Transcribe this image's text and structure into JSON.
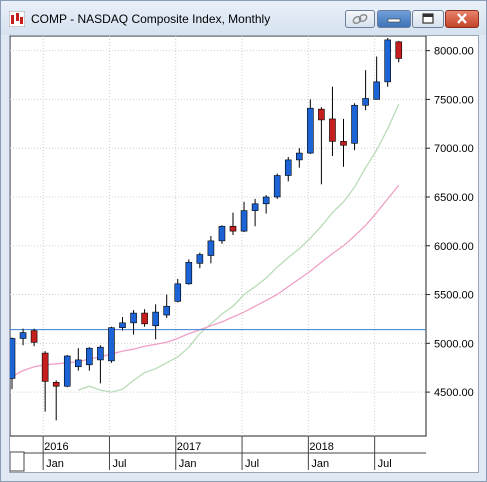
{
  "window": {
    "title": "COMP - NASDAQ Composite Index, Monthly",
    "buttons": [
      "link-icon",
      "minimize-icon",
      "maximize-icon",
      "close-icon"
    ],
    "accent": "#3f73b8"
  },
  "chart_data": {
    "type": "candlestick",
    "title": "COMP - NASDAQ Composite Index, Monthly",
    "y_ticks": [
      "8000.00",
      "7500.00",
      "7000.00",
      "6500.00",
      "6000.00",
      "5500.00",
      "5000.00",
      "4500.00"
    ],
    "ylim": [
      4050,
      8150
    ],
    "x_labels_bottom": [
      "Jan",
      "Jul",
      "Jan",
      "Jul",
      "Jan",
      "Jul"
    ],
    "x_labels_year": [
      "2016",
      "2017",
      "2018"
    ],
    "up_color": "#1c63d6",
    "down_color": "#c41e1e",
    "horizontal_line": {
      "value": 5140,
      "color": "#3b7fd0"
    },
    "candles": [
      {
        "month": "2015-10",
        "open": 4640,
        "high": 5060,
        "low": 4530,
        "close": 5050
      },
      {
        "month": "2015-11",
        "open": 5050,
        "high": 5150,
        "low": 4980,
        "close": 5110
      },
      {
        "month": "2015-12",
        "open": 5130,
        "high": 5150,
        "low": 4970,
        "close": 5010
      },
      {
        "month": "2016-01",
        "open": 4900,
        "high": 4920,
        "low": 4300,
        "close": 4610
      },
      {
        "month": "2016-02",
        "open": 4600,
        "high": 4620,
        "low": 4210,
        "close": 4560
      },
      {
        "month": "2016-03",
        "open": 4560,
        "high": 4880,
        "low": 4550,
        "close": 4870
      },
      {
        "month": "2016-04",
        "open": 4760,
        "high": 4950,
        "low": 4720,
        "close": 4830
      },
      {
        "month": "2016-05",
        "open": 4780,
        "high": 4960,
        "low": 4720,
        "close": 4950
      },
      {
        "month": "2016-06",
        "open": 4830,
        "high": 4980,
        "low": 4590,
        "close": 4960
      },
      {
        "month": "2016-07",
        "open": 4820,
        "high": 5170,
        "low": 4800,
        "close": 5160
      },
      {
        "month": "2016-08",
        "open": 5160,
        "high": 5270,
        "low": 5130,
        "close": 5210
      },
      {
        "month": "2016-09",
        "open": 5210,
        "high": 5340,
        "low": 5090,
        "close": 5310
      },
      {
        "month": "2016-10",
        "open": 5310,
        "high": 5350,
        "low": 5170,
        "close": 5200
      },
      {
        "month": "2016-11",
        "open": 5180,
        "high": 5400,
        "low": 5040,
        "close": 5320
      },
      {
        "month": "2016-12",
        "open": 5290,
        "high": 5500,
        "low": 5260,
        "close": 5380
      },
      {
        "month": "2017-01",
        "open": 5430,
        "high": 5660,
        "low": 5420,
        "close": 5610
      },
      {
        "month": "2017-02",
        "open": 5610,
        "high": 5860,
        "low": 5600,
        "close": 5830
      },
      {
        "month": "2017-03",
        "open": 5820,
        "high": 5930,
        "low": 5770,
        "close": 5910
      },
      {
        "month": "2017-04",
        "open": 5900,
        "high": 6100,
        "low": 5820,
        "close": 6050
      },
      {
        "month": "2017-05",
        "open": 6050,
        "high": 6210,
        "low": 6020,
        "close": 6200
      },
      {
        "month": "2017-06",
        "open": 6200,
        "high": 6340,
        "low": 6110,
        "close": 6150
      },
      {
        "month": "2017-07",
        "open": 6150,
        "high": 6450,
        "low": 6140,
        "close": 6360
      },
      {
        "month": "2017-08",
        "open": 6360,
        "high": 6480,
        "low": 6200,
        "close": 6430
      },
      {
        "month": "2017-09",
        "open": 6430,
        "high": 6520,
        "low": 6330,
        "close": 6500
      },
      {
        "month": "2017-10",
        "open": 6500,
        "high": 6740,
        "low": 6480,
        "close": 6720
      },
      {
        "month": "2017-11",
        "open": 6720,
        "high": 6910,
        "low": 6660,
        "close": 6880
      },
      {
        "month": "2017-12",
        "open": 6880,
        "high": 7000,
        "low": 6800,
        "close": 6950
      },
      {
        "month": "2018-01",
        "open": 6950,
        "high": 7500,
        "low": 6940,
        "close": 7410
      },
      {
        "month": "2018-02",
        "open": 7400,
        "high": 7420,
        "low": 6630,
        "close": 7290
      },
      {
        "month": "2018-03",
        "open": 7300,
        "high": 7630,
        "low": 6920,
        "close": 7070
      },
      {
        "month": "2018-04",
        "open": 7070,
        "high": 7300,
        "low": 6810,
        "close": 7030
      },
      {
        "month": "2018-05",
        "open": 7050,
        "high": 7460,
        "low": 6980,
        "close": 7440
      },
      {
        "month": "2018-06",
        "open": 7440,
        "high": 7800,
        "low": 7390,
        "close": 7510
      },
      {
        "month": "2018-07",
        "open": 7500,
        "high": 7940,
        "low": 7500,
        "close": 7680
      },
      {
        "month": "2018-08",
        "open": 7680,
        "high": 8130,
        "low": 7630,
        "close": 8110
      },
      {
        "month": "2018-09",
        "open": 8090,
        "high": 8100,
        "low": 7880,
        "close": 7920
      }
    ],
    "moving_averages": [
      {
        "color": "#b9dcb9",
        "values": [
          null,
          null,
          null,
          null,
          null,
          null,
          4520,
          4560,
          4520,
          4500,
          4530,
          4620,
          4700,
          4740,
          4800,
          4860,
          4960,
          5100,
          5200,
          5300,
          5380,
          5500,
          5580,
          5670,
          5780,
          5880,
          5970,
          6080,
          6200,
          6340,
          6450,
          6600,
          6800,
          6980,
          7200,
          7450
        ]
      },
      {
        "color": "#f0a0c8",
        "values": [
          4660,
          4720,
          4760,
          4780,
          4790,
          4800,
          4810,
          4840,
          4860,
          4890,
          4920,
          4940,
          4970,
          4990,
          5010,
          5050,
          5100,
          5140,
          5180,
          5220,
          5270,
          5320,
          5380,
          5440,
          5500,
          5580,
          5660,
          5740,
          5830,
          5920,
          6000,
          6100,
          6210,
          6340,
          6480,
          6620
        ]
      }
    ]
  }
}
